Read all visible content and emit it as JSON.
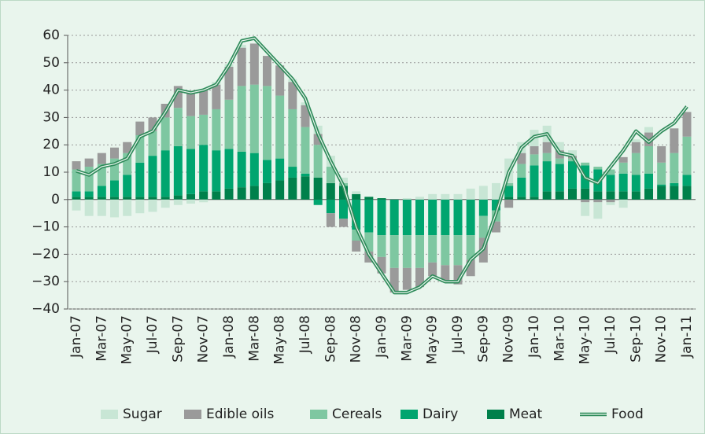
{
  "chart_data": {
    "type": "stacked-bar-line",
    "categories": [
      "Jan-07",
      null,
      "Mar-07",
      null,
      "May-07",
      null,
      "Jul-07",
      null,
      "Sep-07",
      null,
      "Nov-07",
      null,
      "Jan-08",
      null,
      "Mar-08",
      null,
      "May-08",
      null,
      "Jul-08",
      null,
      "Sep-08",
      null,
      "Nov-08",
      null,
      "Jan-09",
      null,
      "Mar-09",
      null,
      "May-09",
      null,
      "Jul-09",
      null,
      "Sep-09",
      null,
      "Nov-09",
      null,
      "Jan-10",
      null,
      "Mar-10",
      null,
      "May-10",
      null,
      "Jul-10",
      null,
      "Sep-10",
      null,
      "Nov-10",
      null,
      "Jan-11"
    ],
    "series": [
      {
        "name": "Sugar",
        "color": "#c8e6d5",
        "values": [
          -4,
          -6,
          -6,
          -6.5,
          -6,
          -5,
          -4.5,
          -3,
          -2,
          -1.5,
          -1,
          1,
          1,
          1,
          0,
          0,
          0,
          1,
          1,
          3,
          4,
          2,
          1,
          0,
          0,
          0,
          0.5,
          1,
          2,
          2,
          2,
          4,
          5,
          6,
          9,
          4,
          6,
          6,
          3,
          2,
          -5,
          -6,
          -1,
          -3,
          1,
          2,
          0,
          0,
          0
        ]
      },
      {
        "name": "Edible oils",
        "color": "#9a9a9a",
        "values": [
          3,
          3,
          4,
          4,
          4,
          5,
          5,
          5,
          8,
          9,
          9,
          9,
          12,
          14,
          15,
          11,
          11,
          10,
          8,
          4,
          -5,
          -3,
          -4,
          -4,
          -6,
          -9,
          -8,
          -7,
          -5,
          -6,
          -7,
          -6,
          -9,
          -4,
          -3,
          4,
          3,
          4,
          3,
          1,
          -1,
          -1,
          -1,
          2,
          4,
          5,
          6,
          9,
          9
        ]
      },
      {
        "name": "Cereals",
        "color": "#7ec7a1",
        "values": [
          8,
          9,
          8,
          8,
          8,
          10,
          9,
          12,
          14,
          12,
          11,
          15,
          18,
          24,
          25,
          27,
          23,
          21,
          17,
          12,
          6,
          1,
          -4,
          -7,
          -8,
          -12,
          -12,
          -12,
          -10,
          -11,
          -11,
          -9,
          -8,
          -4,
          1,
          5,
          4,
          3,
          2,
          1,
          1,
          1,
          2,
          4,
          8,
          10,
          8,
          11,
          14
        ]
      },
      {
        "name": "Dairy",
        "color": "#00a56f",
        "values": [
          2,
          2,
          4,
          6,
          8,
          12.5,
          15,
          17,
          18,
          16.5,
          17,
          15,
          14.5,
          13,
          12,
          8.5,
          8,
          4,
          1,
          -2,
          -5,
          -7,
          -11,
          -12,
          -13,
          -13,
          -13,
          -13,
          -13,
          -13,
          -13,
          -13,
          -6,
          -4,
          4,
          7,
          11.5,
          11,
          10,
          10,
          8.5,
          8,
          6,
          6.5,
          6,
          5.5,
          0.5,
          1,
          4
        ]
      },
      {
        "name": "Meat",
        "color": "#00804b",
        "values": [
          1,
          1,
          1,
          1,
          1,
          1,
          1,
          1,
          1.5,
          2,
          3,
          3,
          4,
          4.5,
          5,
          6,
          7,
          8,
          8.5,
          8,
          6,
          5,
          2,
          1,
          0.5,
          0,
          0,
          0,
          0,
          0,
          0,
          0,
          0,
          0,
          1,
          1,
          1,
          3,
          3,
          4,
          4,
          3,
          3,
          3,
          3,
          4,
          5,
          5,
          5
        ]
      }
    ],
    "line": {
      "name": "Food",
      "color": "#2e8b5a",
      "values": [
        10.5,
        9,
        12,
        13,
        15,
        23,
        25,
        32,
        40,
        39,
        40,
        42,
        49,
        58,
        59,
        54,
        49,
        44,
        37,
        24,
        14,
        5,
        -10,
        -20,
        -27,
        -34,
        -34,
        -32,
        -28,
        -30,
        -30,
        -22,
        -18,
        -5,
        10,
        19,
        23,
        24,
        17,
        16,
        8,
        6,
        12,
        18,
        25,
        21,
        25,
        28,
        34
      ]
    },
    "ylim": [
      -40,
      60
    ],
    "yticks": [
      {
        "value": -40,
        "label": "−40"
      },
      {
        "value": -30,
        "label": "−30"
      },
      {
        "value": -20,
        "label": "−20"
      },
      {
        "value": -10,
        "label": "−10"
      },
      0,
      10,
      20,
      30,
      40,
      50,
      60
    ],
    "grid": true,
    "legend": "bottom"
  }
}
